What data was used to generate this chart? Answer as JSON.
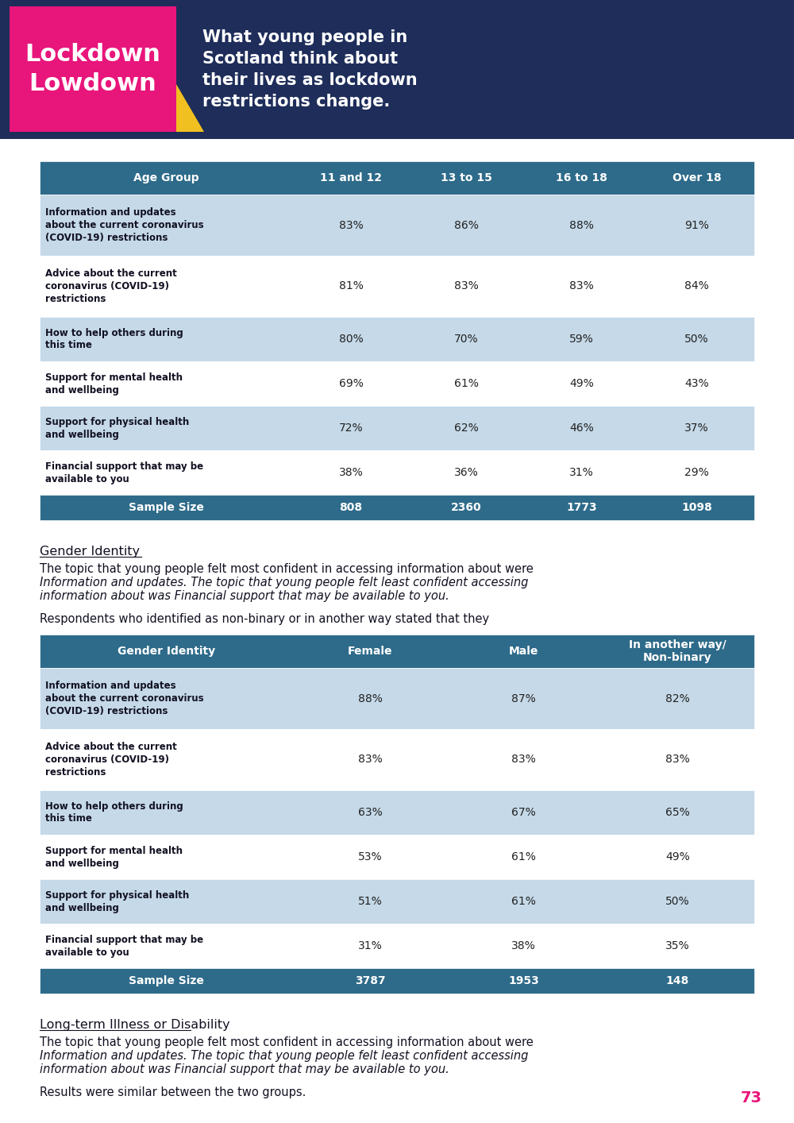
{
  "header_bg_color": "#1e2d5a",
  "header_text": "What young people in\nScotland think about\ntheir lives as lockdown\nrestrictions change.",
  "lockdown_bg": "#e8157b",
  "lockdown_text": "Lockdown\nLowdown",
  "yellow_accent": "#f0c020",
  "page_bg": "#ffffff",
  "table1_header_color": "#2e6b8a",
  "table1_header_text_color": "#ffffff",
  "table1_alt_row_color": "#c5d9e8",
  "table1_white_row_color": "#ffffff",
  "table1_title": "Age Group",
  "table1_columns": [
    "11 and 12",
    "13 to 15",
    "16 to 18",
    "Over 18"
  ],
  "table1_rows": [
    [
      "Information and updates\nabout the current coronavirus\n(COVID-19) restrictions",
      "83%",
      "86%",
      "88%",
      "91%"
    ],
    [
      "Advice about the current\ncoronavirus (COVID-19)\nrestrictions",
      "81%",
      "83%",
      "83%",
      "84%"
    ],
    [
      "How to help others during\nthis time",
      "80%",
      "70%",
      "59%",
      "50%"
    ],
    [
      "Support for mental health\nand wellbeing",
      "69%",
      "61%",
      "49%",
      "43%"
    ],
    [
      "Support for physical health\nand wellbeing",
      "72%",
      "62%",
      "46%",
      "37%"
    ],
    [
      "Financial support that may be\navailable to you",
      "38%",
      "36%",
      "31%",
      "29%"
    ]
  ],
  "table1_sample": [
    "808",
    "2360",
    "1773",
    "1098"
  ],
  "gender_section_heading": "Gender Identity",
  "gender_para1_line1": "The topic that young people felt most confident in accessing information about were",
  "gender_para1_line2": "Information and updates. The topic that young people felt least confident accessing",
  "gender_para1_line3": "information about was Financial support that may be available to you.",
  "gender_para2": "Respondents who identified as non-binary or in another way stated that they",
  "table2_header_color": "#2e6b8a",
  "table2_header_text_color": "#ffffff",
  "table2_alt_row_color": "#c5d9e8",
  "table2_white_row_color": "#ffffff",
  "table2_title": "Gender Identity",
  "table2_columns": [
    "Female",
    "Male",
    "In another way/\nNon-binary"
  ],
  "table2_rows": [
    [
      "Information and updates\nabout the current coronavirus\n(COVID-19) restrictions",
      "88%",
      "87%",
      "82%"
    ],
    [
      "Advice about the current\ncoronavirus (COVID-19)\nrestrictions",
      "83%",
      "83%",
      "83%"
    ],
    [
      "How to help others during\nthis time",
      "63%",
      "67%",
      "65%"
    ],
    [
      "Support for mental health\nand wellbeing",
      "53%",
      "61%",
      "49%"
    ],
    [
      "Support for physical health\nand wellbeing",
      "51%",
      "61%",
      "50%"
    ],
    [
      "Financial support that may be\navailable to you",
      "31%",
      "38%",
      "35%"
    ]
  ],
  "table2_sample": [
    "3787",
    "1953",
    "148"
  ],
  "longterm_heading": "Long-term Illness or Disability",
  "longterm_para1_line1": "The topic that young people felt most confident in accessing information about were",
  "longterm_para1_line2": "Information and updates. The topic that young people felt least confident accessing",
  "longterm_para1_line3": "information about was Financial support that may be available to you.",
  "longterm_para2": "Results were similar between the two groups.",
  "page_number": "73",
  "page_number_color": "#e8157b"
}
